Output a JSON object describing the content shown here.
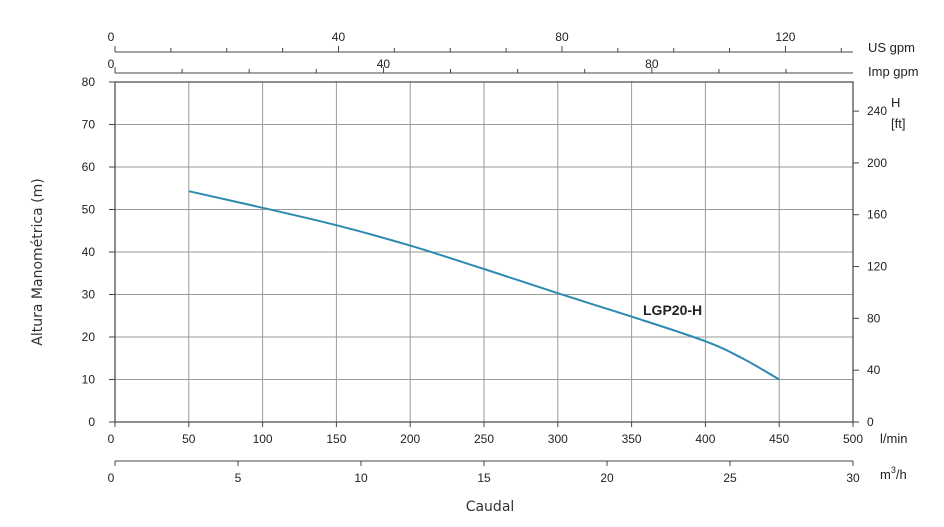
{
  "chart_data": {
    "type": "line",
    "series": [
      {
        "name": "LGP20-H",
        "x": [
          50,
          100,
          150,
          200,
          250,
          300,
          350,
          400,
          425,
          450
        ],
        "values": [
          54.3,
          50.4,
          46.3,
          41.5,
          36.0,
          30.3,
          24.8,
          19.0,
          15.0,
          10.0
        ]
      }
    ],
    "color": "#2d8bb0",
    "xlim": [
      0,
      500
    ],
    "ylim": [
      0,
      80
    ],
    "grid": true,
    "ylabel": "Altura Manométrica (m)",
    "xlabel": "Caudal",
    "axes": {
      "lmin": {
        "unit": "l/min",
        "ticks": [
          "0",
          "50",
          "100",
          "150",
          "200",
          "250",
          "300",
          "350",
          "400",
          "450",
          "500"
        ]
      },
      "m3h": {
        "unit_base": "m",
        "unit_sup": "3",
        "unit_tail": "/h",
        "range": [
          0,
          30
        ],
        "ticks": [
          "0",
          "5",
          "10",
          "15",
          "20",
          "25",
          "30"
        ]
      },
      "usgpm": {
        "unit": "US gpm",
        "range": [
          0,
          132.09
        ],
        "ticks": [
          "0",
          "40",
          "80",
          "120"
        ],
        "minor_step": 10
      },
      "impgpm": {
        "unit": "Imp gpm",
        "range": [
          0,
          109.98
        ],
        "ticks": [
          "0",
          "40",
          "80"
        ],
        "minor_step": 10
      },
      "meters": {
        "ticks": [
          "0",
          "10",
          "20",
          "30",
          "40",
          "50",
          "60",
          "70",
          "80"
        ]
      },
      "feet": {
        "unit": "H",
        "unit_sub": "[ft]",
        "range": [
          0,
          262.47
        ],
        "ticks": [
          "0",
          "40",
          "80",
          "120",
          "160",
          "200",
          "240"
        ]
      }
    }
  }
}
